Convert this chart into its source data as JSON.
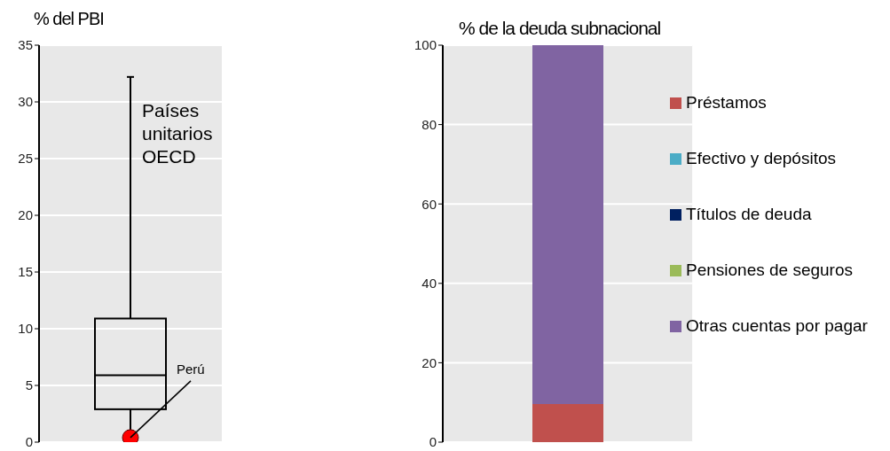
{
  "chart_data": [
    {
      "type": "box",
      "ylabel": "% del PBI",
      "categories": [
        null
      ],
      "boxes": [
        {
          "low": 1,
          "q1": 2.9,
          "median": 5.9,
          "q3": 10.9,
          "high": 32.2
        }
      ],
      "series": [
        {
          "type": "scatter",
          "color": "#ff0000",
          "values": [
            0.4
          ]
        }
      ],
      "ylim": [
        0,
        35
      ],
      "yticks": [
        0,
        5,
        10,
        15,
        20,
        25,
        30,
        35
      ],
      "grid": "y",
      "annotations": [
        "Países unitarios OECD",
        "Perú"
      ]
    },
    {
      "type": "bar",
      "ylabel": "% de la deuda subnacional",
      "categories": [
        null
      ],
      "stacked": true,
      "legend": "right",
      "grid": "y",
      "ylim": [
        0,
        100
      ],
      "yticks": [
        0,
        20,
        40,
        60,
        80,
        100
      ],
      "series": [
        {
          "name": "Préstamos",
          "color": "#c0504d",
          "values": [
            9.6
          ]
        },
        {
          "name": "Efectivo y depósitos",
          "color": "#4bacc6",
          "values": [
            0
          ]
        },
        {
          "name": "Títulos de deuda",
          "color": "#002060",
          "values": [
            0
          ]
        },
        {
          "name": "Pensiones de seguros",
          "color": "#9bbb59",
          "values": [
            0
          ]
        },
        {
          "name": "Otras cuentas por pagar",
          "color": "#8064a2",
          "values": [
            90.4
          ]
        }
      ]
    }
  ]
}
